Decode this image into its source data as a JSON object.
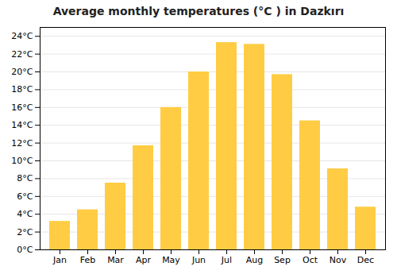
{
  "chart_data": {
    "type": "bar",
    "title": "Average monthly temperatures (°C ) in Dazkırı",
    "categories": [
      "Jan",
      "Feb",
      "Mar",
      "Apr",
      "May",
      "Jun",
      "Jul",
      "Aug",
      "Sep",
      "Oct",
      "Nov",
      "Dec"
    ],
    "values": [
      3.2,
      4.5,
      7.5,
      11.7,
      16.0,
      20.0,
      23.3,
      23.1,
      19.7,
      14.5,
      9.1,
      4.8
    ],
    "color": "#FFCC44",
    "ylim": [
      0,
      25
    ],
    "yticks": [
      {
        "value": 0,
        "label": "0°C"
      },
      {
        "value": 2,
        "label": "2°C"
      },
      {
        "value": 4,
        "label": "4°C"
      },
      {
        "value": 6,
        "label": "6°C"
      },
      {
        "value": 8,
        "label": "8°C"
      },
      {
        "value": 10,
        "label": "10°C"
      },
      {
        "value": 12,
        "label": "12°C"
      },
      {
        "value": 14,
        "label": "14°C"
      },
      {
        "value": 16,
        "label": "16°C"
      },
      {
        "value": 18,
        "label": "18°C"
      },
      {
        "value": 20,
        "label": "20°C"
      },
      {
        "value": 22,
        "label": "22°C"
      },
      {
        "value": 24,
        "label": "24°C"
      }
    ],
    "grid": true
  }
}
